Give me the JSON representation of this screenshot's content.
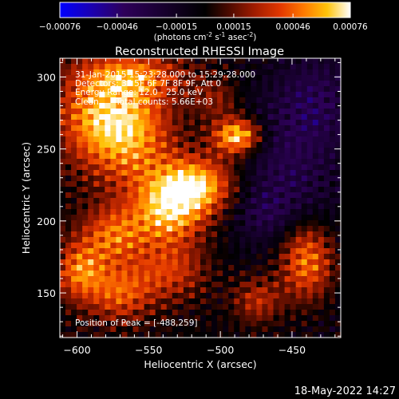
{
  "colorbar": {
    "ticks": [
      "-0.00076",
      "-0.00046",
      "-0.00015",
      "0.00015",
      "0.00046",
      "0.00076"
    ],
    "tick_values": [
      -0.00076,
      -0.00046,
      -0.00015,
      0.00015,
      0.00046,
      0.00076
    ],
    "range": [
      -0.00076,
      0.00076
    ],
    "unit_label": "(photons cm",
    "unit_exp1": "-2",
    "unit_mid": " s",
    "unit_exp2": "-1",
    "unit_end": " asec",
    "unit_exp3": "-2",
    "unit_close": ")",
    "colormap": [
      "#0000ff",
      "#1b00b0",
      "#2e005a",
      "#000000",
      "#4a0a00",
      "#a01c00",
      "#e33800",
      "#ff7a00",
      "#ffc40a",
      "#ffffff"
    ]
  },
  "chart_data": {
    "type": "heatmap",
    "title": "Reconstructed RHESSI Image",
    "xlabel": "Heliocentric X (arcsec)",
    "ylabel": "Heliocentric Y (arcsec)",
    "x_ticks": [
      -600,
      -550,
      -500,
      -450
    ],
    "y_ticks": [
      150,
      200,
      250,
      300
    ],
    "xlim": [
      -612,
      -416
    ],
    "ylim": [
      119,
      313
    ],
    "grid_cells": 50,
    "z_range": [
      -0.00076,
      0.00076
    ],
    "peak": [
      -488,
      259
    ],
    "annotations": [
      "31-Jan-2015 15:23:28.000 to 15:29:28.000",
      "Detectors: 3F 5F 6F 7F 8F 9F, Att 0",
      "Energy Range: 12.0 - 25.0 keV",
      "Clean",
      "Total counts: 5.66E+03"
    ],
    "peak_label": "Position of Peak = [-488,259]",
    "timestamp": "18-May-2022 14:27",
    "blobs": [
      {
        "x": -488,
        "y": 259,
        "sx": 12,
        "sy": 9,
        "amp": 0.00076
      },
      {
        "x": -517,
        "y": 225,
        "sx": 20,
        "sy": 14,
        "amp": 0.00066
      },
      {
        "x": -536,
        "y": 205,
        "sx": 18,
        "sy": 16,
        "amp": 0.00055
      },
      {
        "x": -560,
        "y": 262,
        "sx": 20,
        "sy": 28,
        "amp": 0.0005
      },
      {
        "x": -588,
        "y": 272,
        "sx": 20,
        "sy": 24,
        "amp": 0.00048
      },
      {
        "x": -575,
        "y": 190,
        "sx": 16,
        "sy": 14,
        "amp": 0.00044
      },
      {
        "x": -598,
        "y": 165,
        "sx": 12,
        "sy": 14,
        "amp": 0.00048
      },
      {
        "x": -570,
        "y": 150,
        "sx": 16,
        "sy": 14,
        "amp": 0.00042
      },
      {
        "x": -535,
        "y": 165,
        "sx": 18,
        "sy": 14,
        "amp": 0.00034
      },
      {
        "x": -560,
        "y": 301,
        "sx": 26,
        "sy": 10,
        "amp": 0.00036
      },
      {
        "x": -440,
        "y": 173,
        "sx": 14,
        "sy": 20,
        "amp": 0.0006
      },
      {
        "x": -474,
        "y": 145,
        "sx": 12,
        "sy": 12,
        "amp": 0.00034
      },
      {
        "x": -503,
        "y": 285,
        "sx": 12,
        "sy": 10,
        "amp": 0.00024
      },
      {
        "x": -455,
        "y": 235,
        "sx": 26,
        "sy": 42,
        "amp": -0.00028
      },
      {
        "x": -432,
        "y": 285,
        "sx": 18,
        "sy": 22,
        "amp": -0.00022
      },
      {
        "x": -470,
        "y": 205,
        "sx": 16,
        "sy": 12,
        "amp": -0.00015
      }
    ]
  }
}
